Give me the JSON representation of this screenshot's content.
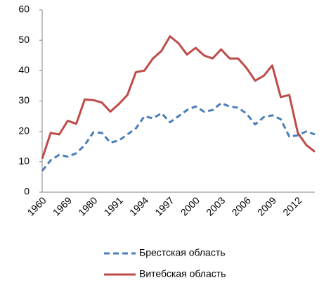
{
  "chart_data": {
    "type": "line",
    "categories": [
      "1960",
      null,
      null,
      "1969",
      null,
      null,
      "1980",
      null,
      null,
      "1991",
      null,
      null,
      "1994",
      null,
      null,
      "1997",
      null,
      null,
      "2000",
      null,
      null,
      "2003",
      null,
      null,
      "2006",
      null,
      null,
      "2009",
      null,
      null,
      "2012",
      null,
      null
    ],
    "series": [
      {
        "name": "Брестская область",
        "color": "#4a7ebb",
        "dashed": true,
        "values": [
          7,
          10.5,
          12.3,
          11.7,
          12.8,
          15.5,
          19.7,
          19.5,
          16.3,
          17,
          19,
          21,
          25,
          24.3,
          26,
          23,
          25,
          27,
          28.2,
          26.5,
          27,
          29.3,
          28.2,
          27.8,
          25.8,
          22.3,
          24.7,
          25.3,
          24,
          18.3,
          18.7,
          20,
          19
        ]
      },
      {
        "name": "Витебская область",
        "color": "#be4b48",
        "dashed": false,
        "values": [
          11,
          19.5,
          19,
          23.5,
          22.5,
          30.5,
          30.3,
          29.5,
          26.5,
          29,
          32,
          39.5,
          40,
          44,
          46.5,
          51.3,
          49,
          45.3,
          47.5,
          45,
          44,
          47,
          44,
          44,
          40.8,
          36.7,
          38.3,
          41.7,
          31.3,
          32,
          19.5,
          15.5,
          13.3
        ]
      }
    ],
    "ylim": [
      0,
      60
    ],
    "yticks": [
      0,
      10,
      20,
      30,
      40,
      50,
      60
    ],
    "grid": false
  }
}
